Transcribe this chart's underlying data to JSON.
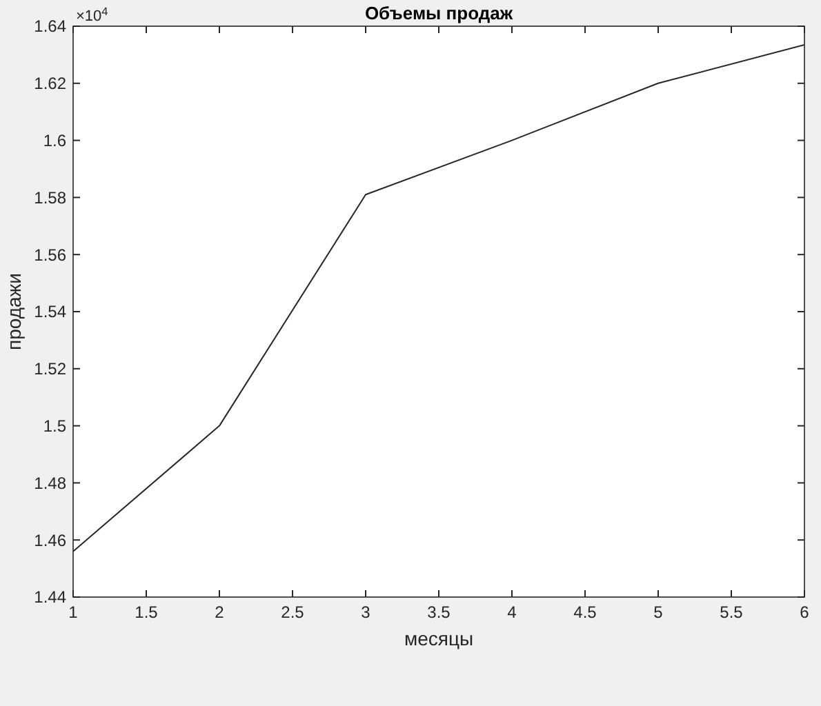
{
  "chart_data": {
    "type": "line",
    "title": "Объемы продаж",
    "xlabel": "месяцы",
    "ylabel": "продажи",
    "annotations": [
      "×10$^{4}$"
    ],
    "x": [
      1,
      2,
      3,
      4,
      5,
      6
    ],
    "series": [
      {
        "color": "#262626",
        "values": [
          1.456,
          1.5,
          1.581,
          1.6,
          1.62,
          1.6335
        ]
      }
    ],
    "xlim": [
      1,
      6
    ],
    "xticks": [
      1,
      1.5,
      2,
      2.5,
      3,
      3.5,
      4,
      4.5,
      5,
      5.5,
      6
    ],
    "ylim": [
      1.44,
      1.64
    ],
    "yticks": [
      1.44,
      1.46,
      1.48,
      1.5,
      1.52,
      1.54,
      1.56,
      1.58,
      1.6,
      1.62,
      1.64
    ],
    "grid": false,
    "marker": "none",
    "line_style": "solid"
  }
}
